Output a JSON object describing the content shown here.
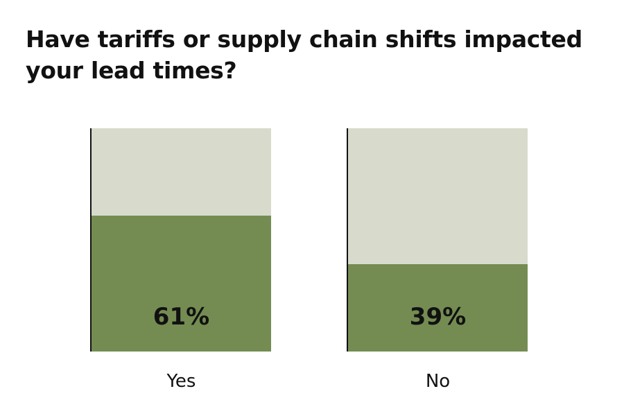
{
  "chart_data": {
    "type": "bar",
    "title": "Have tariffs or supply chain shifts impacted your lead times?",
    "categories": [
      "Yes",
      "No"
    ],
    "values": [
      61,
      39
    ],
    "value_labels": [
      "61%",
      "39%"
    ],
    "ylim": [
      0,
      100
    ],
    "xlabel": "",
    "ylabel": "",
    "grid": false,
    "colors": {
      "fill": "#748c52",
      "background": "#d8dbcc"
    }
  }
}
